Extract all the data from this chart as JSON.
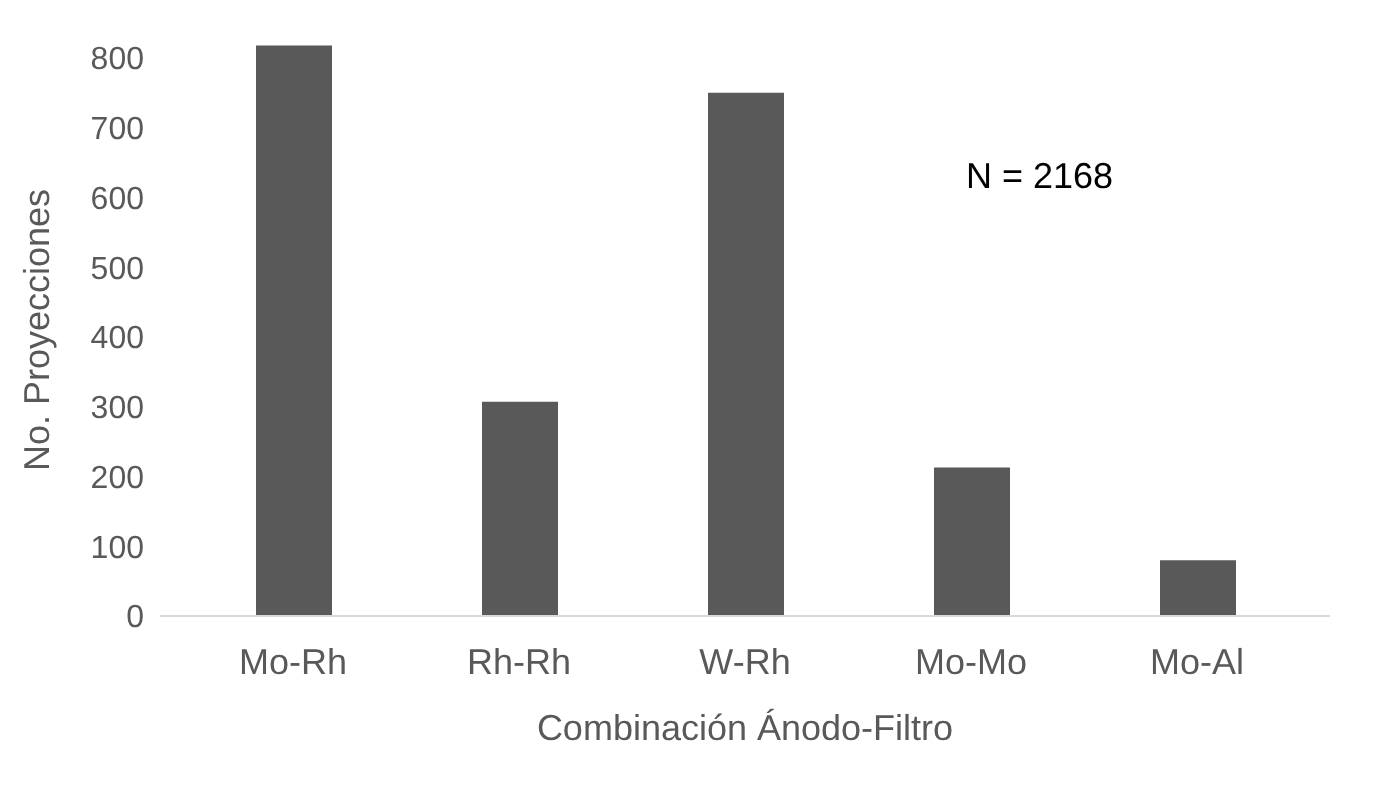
{
  "chart_data": {
    "type": "bar",
    "xlabel": "Combinación Ánodo-Filtro",
    "ylabel": "No. Proyecciones",
    "categories": [
      "Mo-Rh",
      "Rh-Rh",
      "W-Rh",
      "Mo-Mo",
      "Mo-Al"
    ],
    "values": [
      818,
      307,
      750,
      213,
      80
    ],
    "color": "#595959",
    "ylim": [
      0,
      820
    ],
    "yticks": [
      0,
      100,
      200,
      300,
      400,
      500,
      600,
      700,
      800
    ],
    "grid": false,
    "annotations": [
      "N = 2168"
    ]
  }
}
